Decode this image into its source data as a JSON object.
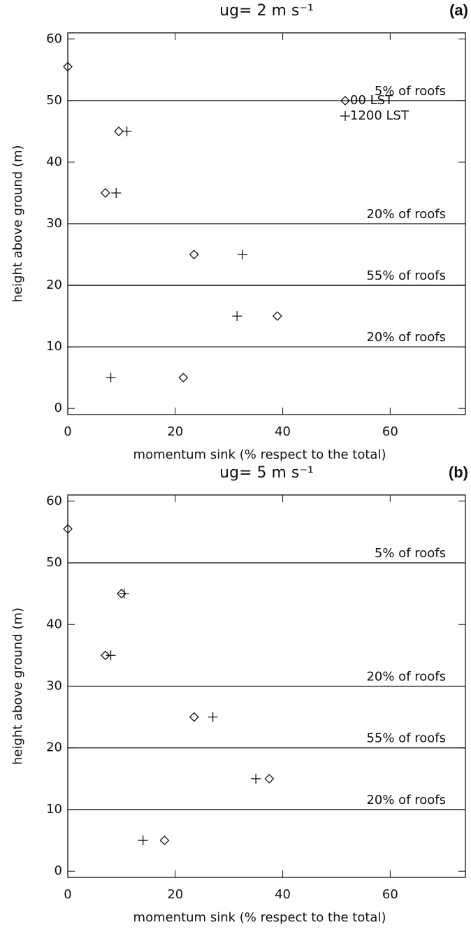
{
  "chart_data": [
    {
      "type": "scatter",
      "title": "ug= 2 m s⁻¹",
      "panel_label": "(a)",
      "xlabel": "momentum sink (% respect to the total)",
      "ylabel": "height above ground (m)",
      "xlim": [
        0,
        74
      ],
      "ylim": [
        -1,
        61
      ],
      "xticks": [
        0,
        20,
        40,
        60
      ],
      "yticks": [
        0,
        10,
        20,
        30,
        40,
        50,
        60
      ],
      "legend": "upper right",
      "hlines": [
        {
          "value": 50,
          "label": "5% of roofs"
        },
        {
          "value": 30,
          "label": "20% of roofs"
        },
        {
          "value": 20,
          "label": "55% of roofs"
        },
        {
          "value": 10,
          "label": "20% of roofs"
        }
      ],
      "series": [
        {
          "name": "00 LST",
          "marker": "diamond",
          "color": "#111111",
          "x": [
            0,
            9.5,
            7,
            23.5,
            39,
            21.5
          ],
          "y": [
            55.5,
            45,
            35,
            25,
            15,
            5
          ]
        },
        {
          "name": "1200 LST",
          "marker": "plus",
          "color": "#111111",
          "x": [
            11,
            9,
            32.5,
            31.5,
            8
          ],
          "y": [
            45,
            35,
            25,
            15,
            5
          ]
        }
      ]
    },
    {
      "type": "scatter",
      "title": "ug= 5 m s⁻¹",
      "panel_label": "(b)",
      "xlabel": "momentum sink (% respect to the total)",
      "ylabel": "height above ground (m)",
      "xlim": [
        0,
        74
      ],
      "ylim": [
        -1,
        61
      ],
      "xticks": [
        0,
        20,
        40,
        60
      ],
      "yticks": [
        0,
        10,
        20,
        30,
        40,
        50,
        60
      ],
      "hlines": [
        {
          "value": 50,
          "label": "5% of roofs"
        },
        {
          "value": 30,
          "label": "20% of roofs"
        },
        {
          "value": 20,
          "label": "55% of roofs"
        },
        {
          "value": 10,
          "label": "20% of roofs"
        }
      ],
      "series": [
        {
          "marker": "diamond",
          "color": "#111111",
          "x": [
            0,
            10,
            7,
            23.5,
            37.5,
            18
          ],
          "y": [
            55.5,
            45,
            35,
            25,
            15,
            5
          ]
        },
        {
          "marker": "plus",
          "color": "#111111",
          "x": [
            10.5,
            8,
            27,
            35,
            14
          ],
          "y": [
            45,
            35,
            25,
            15,
            5
          ]
        }
      ]
    }
  ]
}
